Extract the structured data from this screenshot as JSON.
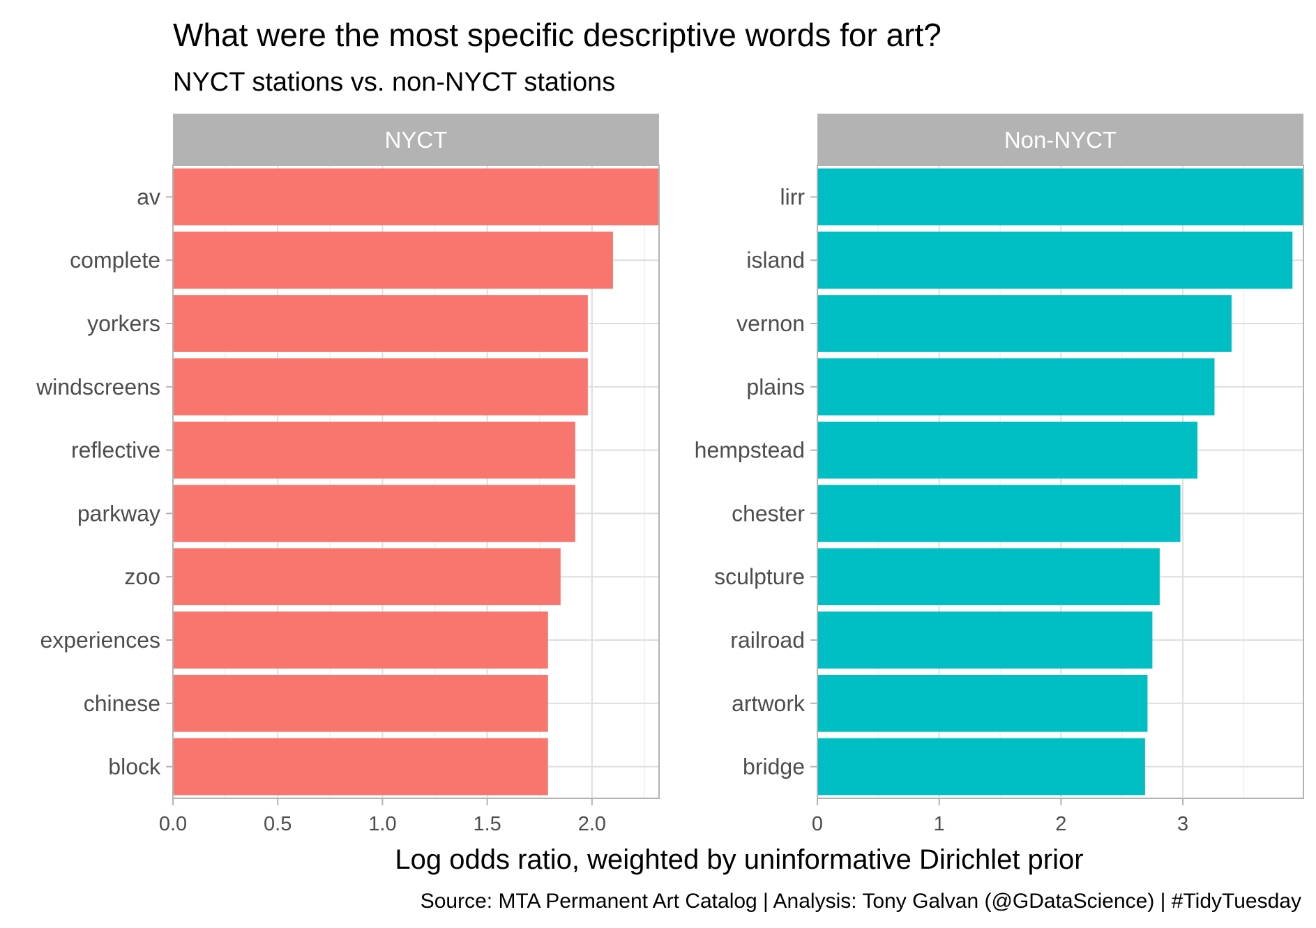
{
  "title": "What were the most specific descriptive words for art?",
  "subtitle": "NYCT stations vs. non-NYCT stations",
  "xlabel": "Log odds ratio, weighted by uninformative Dirichlet prior",
  "caption": "Source: MTA Permanent Art Catalog  |  Analysis: Tony Galvan (@GDataScience)  |  #TidyTuesday",
  "colors": {
    "strip": "#b3b3b3",
    "grid_major": "#dedede",
    "grid_minor": "#efefef",
    "panel_border": "#b3b3b3",
    "nyct_bar": "#f8766d",
    "non_nyct_bar": "#00bfc4"
  },
  "chart_data": [
    {
      "type": "bar",
      "orientation": "horizontal",
      "facet": "NYCT",
      "color": "#f8766d",
      "categories": [
        "av",
        "complete",
        "yorkers",
        "windscreens",
        "reflective",
        "parkway",
        "zoo",
        "experiences",
        "chinese",
        "block"
      ],
      "values": [
        2.38,
        2.1,
        1.98,
        1.98,
        1.92,
        1.92,
        1.85,
        1.79,
        1.79,
        1.79
      ],
      "xlim": [
        0,
        2.32
      ],
      "xticks": [
        0,
        0.5,
        1.0,
        1.5,
        2.0
      ],
      "xtick_labels": [
        "0.0",
        "0.5",
        "1.0",
        "1.5",
        "2.0"
      ],
      "grid": true
    },
    {
      "type": "bar",
      "orientation": "horizontal",
      "facet": "Non-NYCT",
      "color": "#00bfc4",
      "categories": [
        "lirr",
        "island",
        "vernon",
        "plains",
        "hempstead",
        "chester",
        "sculpture",
        "railroad",
        "artwork",
        "bridge"
      ],
      "values": [
        4.1,
        3.9,
        3.4,
        3.26,
        3.12,
        2.98,
        2.81,
        2.75,
        2.71,
        2.69
      ],
      "xlim": [
        0,
        3.99
      ],
      "xticks": [
        0,
        1,
        2,
        3
      ],
      "xtick_labels": [
        "0",
        "1",
        "2",
        "3"
      ],
      "grid": true
    }
  ]
}
